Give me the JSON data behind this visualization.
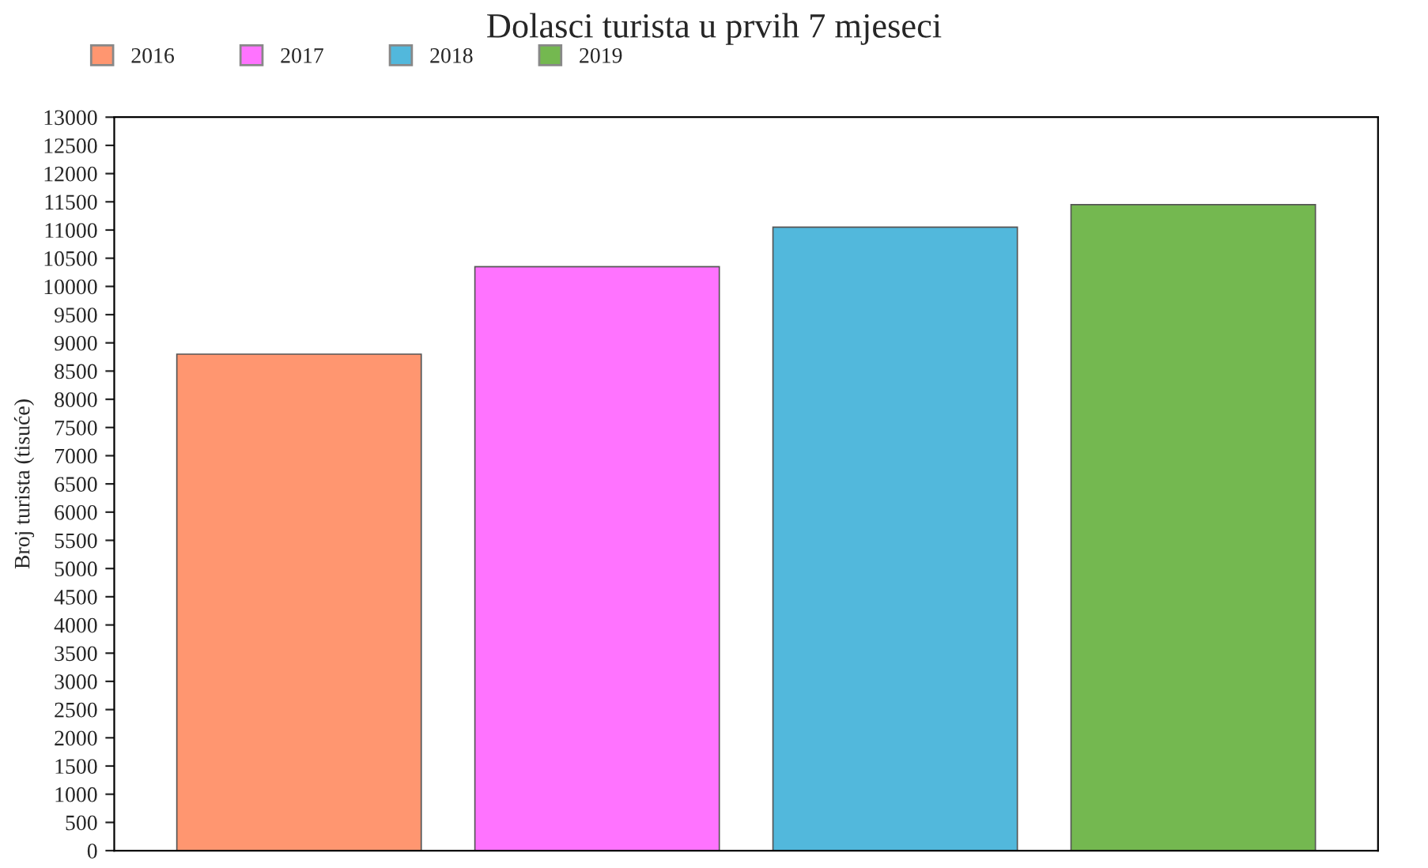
{
  "chart_data": {
    "type": "bar",
    "title": "Dolasci turista u prvih 7 mjeseci",
    "ylabel": "Broj turista (tisuće)",
    "categories": [
      null,
      null,
      null,
      null
    ],
    "series": [
      {
        "name": "2016",
        "color": "#ff9670",
        "values": [
          8800,
          null,
          null,
          null
        ]
      },
      {
        "name": "2017",
        "color": "#ff73ff",
        "values": [
          null,
          10350,
          null,
          null
        ]
      },
      {
        "name": "2018",
        "color": "#52b8dc",
        "values": [
          null,
          null,
          11050,
          null
        ]
      },
      {
        "name": "2019",
        "color": "#74b850",
        "values": [
          null,
          null,
          null,
          11450
        ]
      }
    ],
    "ylim": [
      0,
      13000
    ],
    "yticks": [
      0,
      500,
      1000,
      1500,
      2000,
      2500,
      3000,
      3500,
      4000,
      4500,
      5000,
      5500,
      6000,
      6500,
      7000,
      7500,
      8000,
      8500,
      9000,
      9500,
      10000,
      10500,
      11000,
      11500,
      12000,
      12500,
      13000
    ],
    "grid": false,
    "legend": "top left"
  }
}
